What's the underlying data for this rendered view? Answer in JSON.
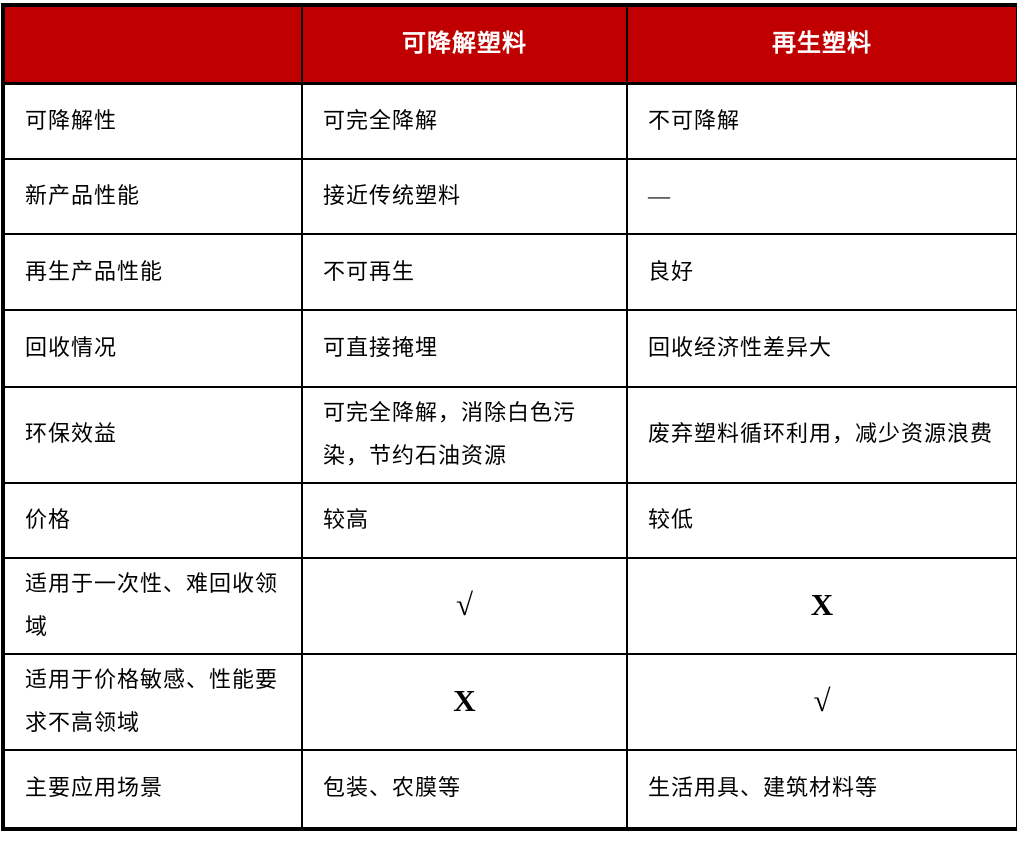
{
  "theme": {
    "header_bg": "#c00000",
    "header_text_color": "#ffffff",
    "border_color": "#000000",
    "body_text_color": "#000000"
  },
  "table": {
    "header": {
      "col1": "",
      "col2": "可降解塑料",
      "col3": "再生塑料"
    },
    "rows": [
      {
        "label": "可降解性",
        "degradable": "可完全降解",
        "recycled": "不可降解"
      },
      {
        "label": "新产品性能",
        "degradable": "接近传统塑料",
        "recycled": "—"
      },
      {
        "label": "再生产品性能",
        "degradable": "不可再生",
        "recycled": "良好"
      },
      {
        "label": "回收情况",
        "degradable": "可直接掩埋",
        "recycled": "回收经济性差异大"
      },
      {
        "label": "环保效益",
        "degradable": "可完全降解，消除白色污染，节约石油资源",
        "recycled": "废弃塑料循环利用，减少资源浪费"
      },
      {
        "label": "价格",
        "degradable": "较高",
        "recycled": "较低"
      },
      {
        "label": "适用于一次性、难回收领域",
        "degradable": "√",
        "recycled": "X"
      },
      {
        "label": "适用于价格敏感、性能要求不高领域",
        "degradable": "X",
        "recycled": "√"
      },
      {
        "label": "主要应用场景",
        "degradable": "包装、农膜等",
        "recycled": "生活用具、建筑材料等"
      }
    ]
  }
}
